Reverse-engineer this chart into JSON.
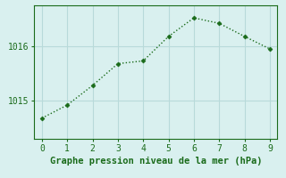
{
  "x": [
    0,
    1,
    2,
    3,
    4,
    5,
    6,
    7,
    8,
    9
  ],
  "y": [
    1014.68,
    1014.92,
    1015.28,
    1015.68,
    1015.73,
    1016.18,
    1016.52,
    1016.42,
    1016.18,
    1015.95
  ],
  "line_color": "#1a6b1a",
  "marker": "D",
  "markersize": 2.5,
  "linewidth": 1.0,
  "bg_color": "#d9f0ef",
  "grid_color": "#b8dada",
  "xlabel": "Graphe pression niveau de la mer (hPa)",
  "xlabel_color": "#1a6b1a",
  "xlabel_fontsize": 7.5,
  "tick_color": "#1a6b1a",
  "tick_fontsize": 7,
  "yticks": [
    1015,
    1016
  ],
  "xticks": [
    0,
    1,
    2,
    3,
    4,
    5,
    6,
    7,
    8,
    9
  ],
  "ylim": [
    1014.3,
    1016.75
  ],
  "xlim": [
    -0.3,
    9.3
  ]
}
